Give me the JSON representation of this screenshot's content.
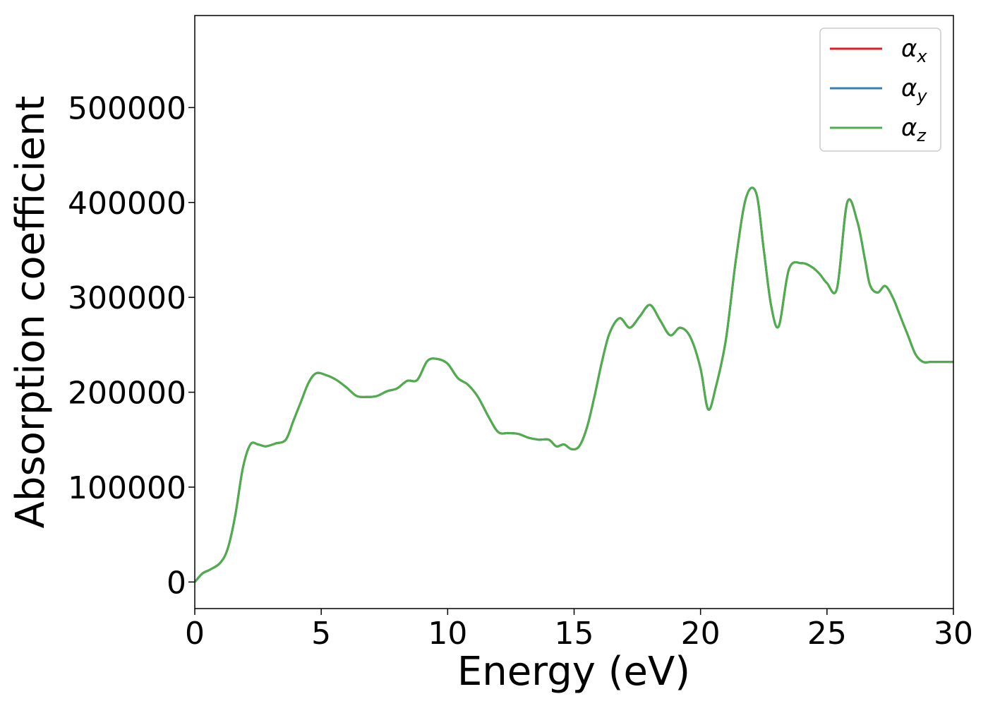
{
  "chart_data": {
    "type": "line",
    "title": "",
    "xlabel": "Energy (eV)",
    "ylabel": "Absorption coefficient",
    "xlim": [
      0,
      30
    ],
    "ylim": [
      -28000,
      597000
    ],
    "xticks": [
      0,
      5,
      10,
      15,
      20,
      25,
      30
    ],
    "yticks": [
      0,
      100000,
      200000,
      300000,
      400000,
      500000
    ],
    "grid": false,
    "legend_position": "top-right",
    "series": [
      {
        "name": "α",
        "subscript": "x",
        "color": "#e41a1c",
        "x": [
          0,
          0.3,
          0.6,
          1.0,
          1.3,
          1.6,
          1.9,
          2.2,
          2.5,
          2.8,
          3.2,
          3.6,
          3.9,
          4.2,
          4.5,
          4.8,
          5.2,
          5.6,
          6.0,
          6.4,
          6.8,
          7.2,
          7.6,
          8.0,
          8.4,
          8.8,
          9.2,
          9.6,
          10.0,
          10.4,
          10.8,
          11.2,
          11.6,
          12.0,
          12.4,
          12.8,
          13.2,
          13.6,
          14.0,
          14.3,
          14.6,
          14.9,
          15.2,
          15.5,
          15.8,
          16.1,
          16.4,
          16.8,
          17.2,
          17.6,
          18.0,
          18.4,
          18.8,
          19.2,
          19.6,
          20.0,
          20.3,
          20.6,
          21.0,
          21.4,
          21.8,
          22.2,
          22.5,
          22.8,
          23.1,
          23.5,
          24.0,
          24.4,
          24.7,
          25.0,
          25.4,
          25.8,
          26.2,
          26.5,
          26.7,
          27.0,
          27.3,
          27.6,
          27.9,
          28.2,
          28.5,
          28.8,
          29.1,
          29.4,
          29.7,
          30.0
        ],
        "y": [
          0,
          9000,
          13000,
          20000,
          35000,
          70000,
          120000,
          145000,
          145000,
          143000,
          146000,
          150000,
          170000,
          190000,
          210000,
          220000,
          218000,
          213000,
          205000,
          196000,
          195000,
          196000,
          201000,
          204000,
          212000,
          213000,
          233000,
          235000,
          230000,
          215000,
          208000,
          195000,
          175000,
          158000,
          157000,
          156000,
          152000,
          150000,
          150000,
          143000,
          145000,
          140000,
          143000,
          162000,
          195000,
          232000,
          262000,
          278000,
          268000,
          280000,
          292000,
          276000,
          260000,
          268000,
          258000,
          225000,
          182000,
          205000,
          255000,
          340000,
          405000,
          410000,
          350000,
          290000,
          270000,
          330000,
          336000,
          332000,
          325000,
          315000,
          310000,
          400000,
          380000,
          340000,
          313000,
          305000,
          312000,
          300000,
          280000,
          260000,
          240000,
          232000,
          232000,
          232000,
          232000,
          232000
        ]
      },
      {
        "name": "α",
        "subscript": "y",
        "color": "#377eb8",
        "x": [
          0,
          0.3,
          0.6,
          1.0,
          1.3,
          1.6,
          1.9,
          2.2,
          2.5,
          2.8,
          3.2,
          3.6,
          3.9,
          4.2,
          4.5,
          4.8,
          5.2,
          5.6,
          6.0,
          6.4,
          6.8,
          7.2,
          7.6,
          8.0,
          8.4,
          8.8,
          9.2,
          9.6,
          10.0,
          10.4,
          10.8,
          11.2,
          11.6,
          12.0,
          12.4,
          12.8,
          13.2,
          13.6,
          14.0,
          14.3,
          14.6,
          14.9,
          15.2,
          15.5,
          15.8,
          16.1,
          16.4,
          16.8,
          17.2,
          17.6,
          18.0,
          18.4,
          18.8,
          19.2,
          19.6,
          20.0,
          20.3,
          20.6,
          21.0,
          21.4,
          21.8,
          22.2,
          22.5,
          22.8,
          23.1,
          23.5,
          24.0,
          24.4,
          24.7,
          25.0,
          25.4,
          25.8,
          26.2,
          26.5,
          26.7,
          27.0,
          27.3,
          27.6,
          27.9,
          28.2,
          28.5,
          28.8,
          29.1,
          29.4,
          29.7,
          30.0
        ],
        "y": [
          0,
          9000,
          13000,
          20000,
          35000,
          70000,
          120000,
          145000,
          145000,
          143000,
          146000,
          150000,
          170000,
          190000,
          210000,
          220000,
          218000,
          213000,
          205000,
          196000,
          195000,
          196000,
          201000,
          204000,
          212000,
          213000,
          233000,
          235000,
          230000,
          215000,
          208000,
          195000,
          175000,
          158000,
          157000,
          156000,
          152000,
          150000,
          150000,
          143000,
          145000,
          140000,
          143000,
          162000,
          195000,
          232000,
          262000,
          278000,
          268000,
          280000,
          292000,
          276000,
          260000,
          268000,
          258000,
          225000,
          182000,
          205000,
          255000,
          340000,
          405000,
          410000,
          350000,
          290000,
          270000,
          330000,
          336000,
          332000,
          325000,
          315000,
          310000,
          400000,
          380000,
          340000,
          313000,
          305000,
          312000,
          300000,
          280000,
          260000,
          240000,
          232000,
          232000,
          232000,
          232000,
          232000
        ]
      },
      {
        "name": "α",
        "subscript": "z",
        "color": "#4daf4a",
        "x": [
          0,
          0.3,
          0.6,
          1.0,
          1.3,
          1.6,
          1.9,
          2.2,
          2.5,
          2.8,
          3.2,
          3.6,
          3.9,
          4.2,
          4.5,
          4.8,
          5.2,
          5.6,
          6.0,
          6.4,
          6.8,
          7.2,
          7.6,
          8.0,
          8.4,
          8.8,
          9.2,
          9.6,
          10.0,
          10.4,
          10.8,
          11.2,
          11.6,
          12.0,
          12.4,
          12.8,
          13.2,
          13.6,
          14.0,
          14.3,
          14.6,
          14.9,
          15.2,
          15.5,
          15.8,
          16.1,
          16.4,
          16.8,
          17.2,
          17.6,
          18.0,
          18.4,
          18.8,
          19.2,
          19.6,
          20.0,
          20.3,
          20.6,
          21.0,
          21.4,
          21.8,
          22.2,
          22.5,
          22.8,
          23.1,
          23.5,
          24.0,
          24.4,
          24.7,
          25.0,
          25.4,
          25.8,
          26.2,
          26.5,
          26.7,
          27.0,
          27.3,
          27.6,
          27.9,
          28.2,
          28.5,
          28.8,
          29.1,
          29.4,
          29.7,
          30.0
        ],
        "y": [
          0,
          9000,
          13000,
          20000,
          35000,
          70000,
          120000,
          145000,
          145000,
          143000,
          146000,
          150000,
          170000,
          190000,
          210000,
          220000,
          218000,
          213000,
          205000,
          196000,
          195000,
          196000,
          201000,
          204000,
          212000,
          213000,
          233000,
          235000,
          230000,
          215000,
          208000,
          195000,
          175000,
          158000,
          157000,
          156000,
          152000,
          150000,
          150000,
          143000,
          145000,
          140000,
          143000,
          162000,
          195000,
          232000,
          262000,
          278000,
          268000,
          280000,
          292000,
          276000,
          260000,
          268000,
          258000,
          225000,
          182000,
          205000,
          255000,
          340000,
          405000,
          410000,
          350000,
          290000,
          270000,
          330000,
          336000,
          332000,
          325000,
          315000,
          310000,
          400000,
          380000,
          340000,
          313000,
          305000,
          312000,
          300000,
          280000,
          260000,
          240000,
          232000,
          232000,
          232000,
          232000,
          232000
        ]
      }
    ]
  }
}
